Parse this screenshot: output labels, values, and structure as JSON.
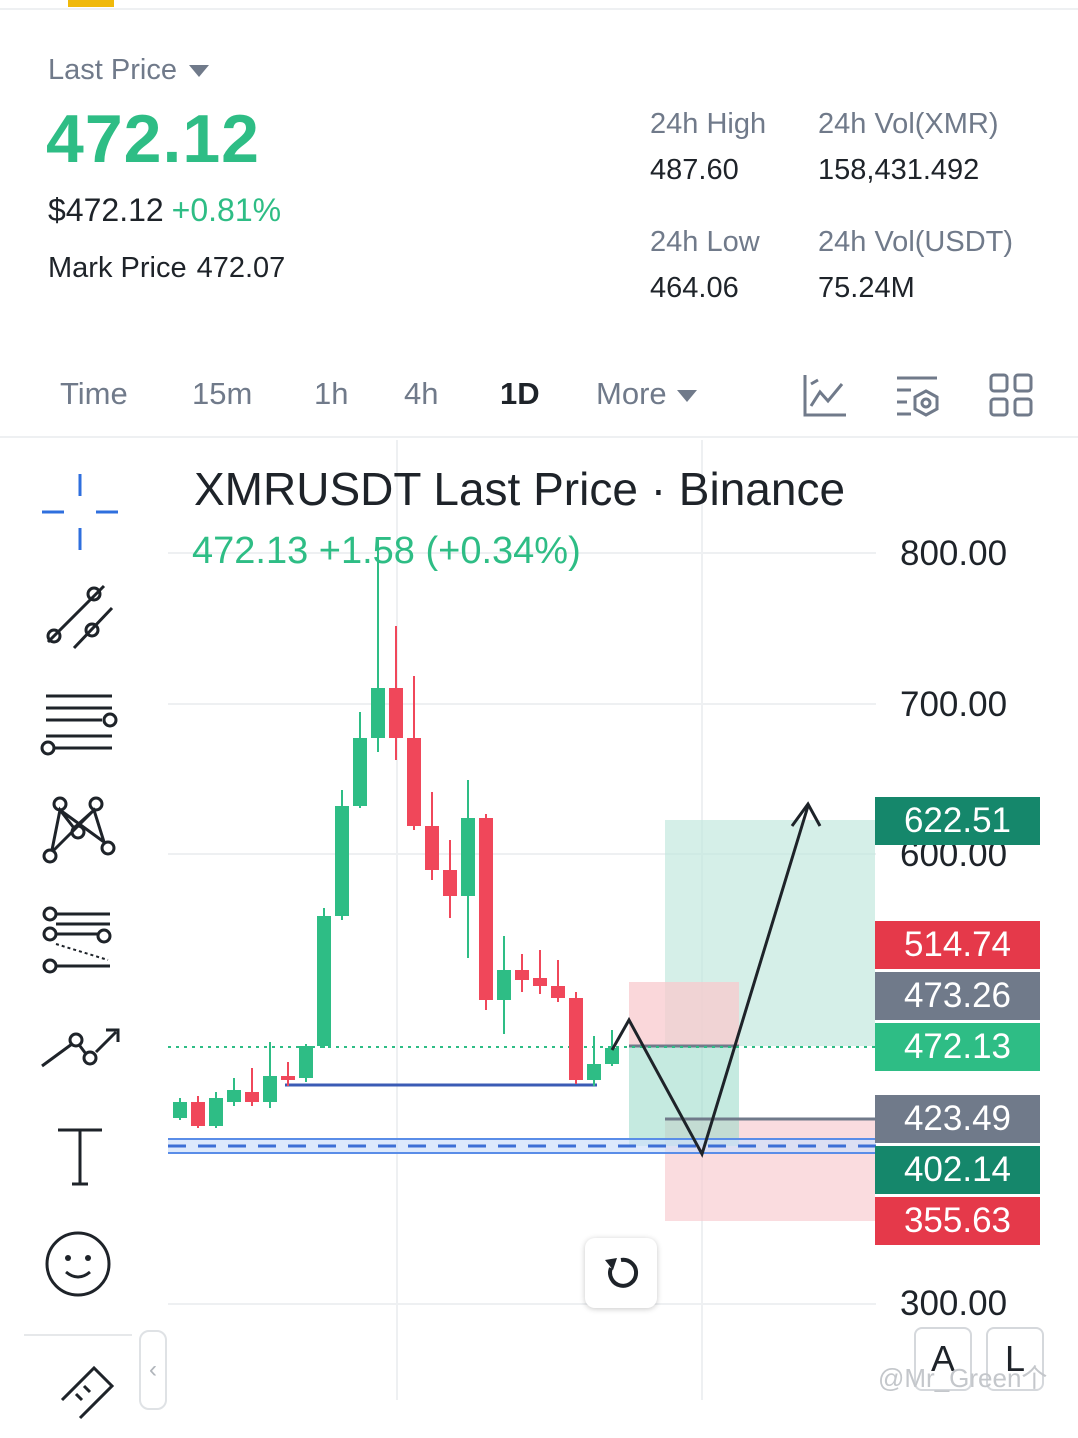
{
  "ticker": {
    "last_price_label": "Last Price",
    "last_price": "472.12",
    "usd_price": "$472.12",
    "change_pct": "+0.81%",
    "mark_price_label": "Mark Price",
    "mark_price": "472.07",
    "high_label": "24h High",
    "high": "487.60",
    "low_label": "24h Low",
    "low": "464.06",
    "vol_base_label": "24h Vol(XMR)",
    "vol_base": "158,431.492",
    "vol_quote_label": "24h Vol(USDT)",
    "vol_quote": "75.24M"
  },
  "intervals": {
    "time": "Time",
    "m15": "15m",
    "h1": "1h",
    "h4": "4h",
    "d1": "1D",
    "more": "More",
    "active": "1D"
  },
  "chart": {
    "title": "XMRUSDT Last Price · Binance",
    "subtitle": "472.13  +1.58 (+0.34%)",
    "axis_labels": [
      "800.00",
      "700.00",
      "600.00",
      "300.00"
    ],
    "tags": [
      {
        "value": "622.51",
        "color": "#15876b"
      },
      {
        "value": "514.74",
        "color": "#e5394a"
      },
      {
        "value": "473.26",
        "color": "#707a8a"
      },
      {
        "value": "472.13",
        "color": "#2ebd85"
      },
      {
        "value": "423.49",
        "color": "#707a8a"
      },
      {
        "value": "402.14",
        "color": "#15876b"
      },
      {
        "value": "355.63",
        "color": "#e5394a"
      }
    ],
    "colors": {
      "up": "#2ebd85",
      "down": "#f0475a",
      "text": "#1e2329",
      "muted": "#707a8a"
    }
  },
  "tools": [
    "crosshair-icon",
    "trendline-icon",
    "horizontal-lines-icon",
    "pattern-icon",
    "fib-icon",
    "projection-icon",
    "text-icon",
    "emoji-icon",
    "ruler-icon"
  ],
  "chart_buttons": {
    "auto": "A",
    "log": "L"
  },
  "watermark": "@Mr_Green个"
}
